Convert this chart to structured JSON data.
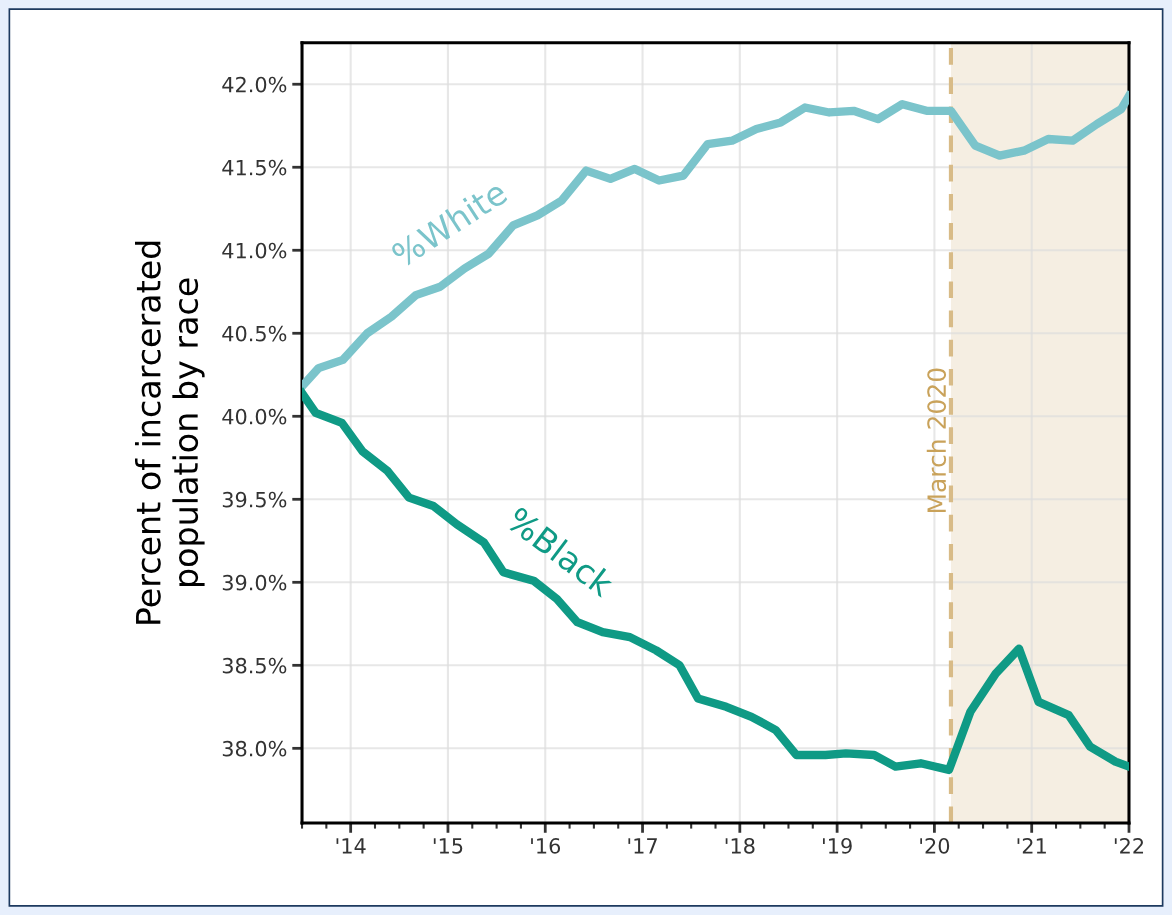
{
  "chart_data": {
    "type": "line",
    "ylabel": "Percent of incarcerated\npopulation by race",
    "series": [
      {
        "name": "%White",
        "color": "#7bc4cb",
        "x": [
          2013.5,
          2013.67,
          2013.92,
          2014.17,
          2014.42,
          2014.67,
          2014.92,
          2015.17,
          2015.42,
          2015.67,
          2015.92,
          2016.17,
          2016.42,
          2016.67,
          2016.92,
          2017.17,
          2017.42,
          2017.67,
          2017.92,
          2018.17,
          2018.42,
          2018.67,
          2018.92,
          2019.17,
          2019.42,
          2019.67,
          2019.92,
          2020.17,
          2020.42,
          2020.67,
          2020.92,
          2021.17,
          2021.42,
          2021.67,
          2021.92,
          2022.0
        ],
        "values": [
          40.18,
          40.29,
          40.34,
          40.5,
          40.6,
          40.73,
          40.78,
          40.89,
          40.98,
          41.15,
          41.21,
          41.3,
          41.48,
          41.43,
          41.49,
          41.42,
          41.45,
          41.64,
          41.66,
          41.73,
          41.77,
          41.86,
          41.83,
          41.84,
          41.79,
          41.88,
          41.84,
          41.84,
          41.63,
          41.57,
          41.6,
          41.67,
          41.66,
          41.76,
          41.85,
          41.93
        ]
      },
      {
        "name": "%Black",
        "color": "#0f9a85",
        "x": [
          2013.5,
          2013.64,
          2013.91,
          2014.12,
          2014.38,
          2014.6,
          2014.85,
          2015.09,
          2015.37,
          2015.57,
          2015.88,
          2016.12,
          2016.33,
          2016.59,
          2016.87,
          2017.14,
          2017.38,
          2017.57,
          2017.86,
          2018.12,
          2018.37,
          2018.58,
          2018.88,
          2019.09,
          2019.38,
          2019.6,
          2019.86,
          2020.15,
          2020.37,
          2020.63,
          2020.87,
          2021.07,
          2021.38,
          2021.6,
          2021.86,
          2022.0
        ],
        "values": [
          40.14,
          40.02,
          39.96,
          39.79,
          39.67,
          39.51,
          39.46,
          39.35,
          39.24,
          39.06,
          39.01,
          38.9,
          38.76,
          38.7,
          38.67,
          38.59,
          38.5,
          38.3,
          38.25,
          38.19,
          38.11,
          37.96,
          37.96,
          37.97,
          37.96,
          37.89,
          37.91,
          37.87,
          38.22,
          38.45,
          38.6,
          38.28,
          38.2,
          38.01,
          37.92,
          37.89
        ]
      }
    ],
    "xlim": [
      2013.5,
      2022.0
    ],
    "xticks": [
      {
        "value": 2014,
        "label": "'14"
      },
      {
        "value": 2015,
        "label": "'15"
      },
      {
        "value": 2016,
        "label": "'16"
      },
      {
        "value": 2017,
        "label": "'17"
      },
      {
        "value": 2018,
        "label": "'18"
      },
      {
        "value": 2019,
        "label": "'19"
      },
      {
        "value": 2020,
        "label": "'20"
      },
      {
        "value": 2021,
        "label": "'21"
      },
      {
        "value": 2022,
        "label": "'22"
      }
    ],
    "ylim": [
      37.55,
      42.25
    ],
    "yticks": [
      {
        "value": 38.0,
        "label": "38.0%"
      },
      {
        "value": 38.5,
        "label": "38.5%"
      },
      {
        "value": 39.0,
        "label": "39.0%"
      },
      {
        "value": 39.5,
        "label": "39.5%"
      },
      {
        "value": 40.0,
        "label": "40.0%"
      },
      {
        "value": 40.5,
        "label": "40.5%"
      },
      {
        "value": 41.0,
        "label": "41.0%"
      },
      {
        "value": 41.5,
        "label": "41.5%"
      },
      {
        "value": 42.0,
        "label": "42.0%"
      }
    ],
    "ref_lines": [
      {
        "axis": "x",
        "value": 2020.17,
        "label": "March 2020",
        "color": "#d8bb87",
        "line_style": "dashed"
      }
    ],
    "bands": [
      {
        "axis": "x",
        "from": 2020.17,
        "to": 2022.0,
        "color": "#f5eee2"
      }
    ],
    "grid": true,
    "legend": false,
    "marker": "none",
    "line_style": "solid"
  }
}
